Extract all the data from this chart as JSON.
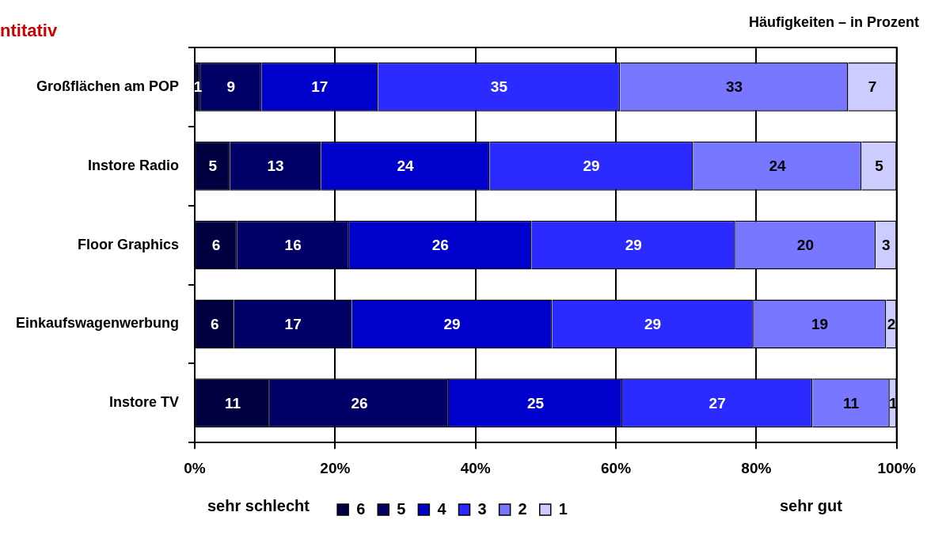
{
  "chart_data": {
    "type": "bar",
    "orientation": "horizontal",
    "stacked": true,
    "title": "ntitativ",
    "subtitle": "Häufigkeiten – in Prozent",
    "categories": [
      "Großflächen am POP",
      "Instore Radio",
      "Floor Graphics",
      "Einkaufswagenwerbung",
      "Instore TV"
    ],
    "series": [
      {
        "name": "6",
        "color": "#000040",
        "values": [
          0.8,
          5,
          6,
          5.6,
          10.7
        ],
        "value_labels": [
          "1",
          "5",
          "6",
          "6",
          "11"
        ]
      },
      {
        "name": "5",
        "color": "#000066",
        "values": [
          8.7,
          13,
          16,
          16.8,
          25.5
        ],
        "value_labels": [
          "9",
          "13",
          "16",
          "17",
          "26"
        ]
      },
      {
        "name": "4",
        "color": "#0000cc",
        "values": [
          16.6,
          24,
          26,
          28.5,
          24.7
        ],
        "value_labels": [
          "17",
          "24",
          "26",
          "29",
          "25"
        ]
      },
      {
        "name": "3",
        "color": "#2b2bff",
        "values": [
          34.5,
          29,
          29,
          28.7,
          27.1
        ],
        "value_labels": [
          "35",
          "29",
          "29",
          "29",
          "27"
        ]
      },
      {
        "name": "2",
        "color": "#7777ff",
        "values": [
          32.5,
          24,
          20,
          18.9,
          11.0
        ],
        "value_labels": [
          "33",
          "24",
          "20",
          "19",
          "11"
        ]
      },
      {
        "name": "1",
        "color": "#ccccff",
        "values": [
          6.9,
          5,
          3,
          1.5,
          1.0
        ],
        "value_labels": [
          "7",
          "5",
          "3",
          "2",
          "1"
        ]
      }
    ],
    "xlim": [
      0,
      100
    ],
    "xticks": [
      {
        "value": 0,
        "label": "0%"
      },
      {
        "value": 20,
        "label": "20%"
      },
      {
        "value": 40,
        "label": "40%"
      },
      {
        "value": 60,
        "label": "60%"
      },
      {
        "value": 80,
        "label": "80%"
      },
      {
        "value": 100,
        "label": "100%"
      }
    ],
    "grid": "x",
    "legend": "bottom",
    "annotations": [
      "sehr schlecht",
      "sehr gut"
    ]
  }
}
